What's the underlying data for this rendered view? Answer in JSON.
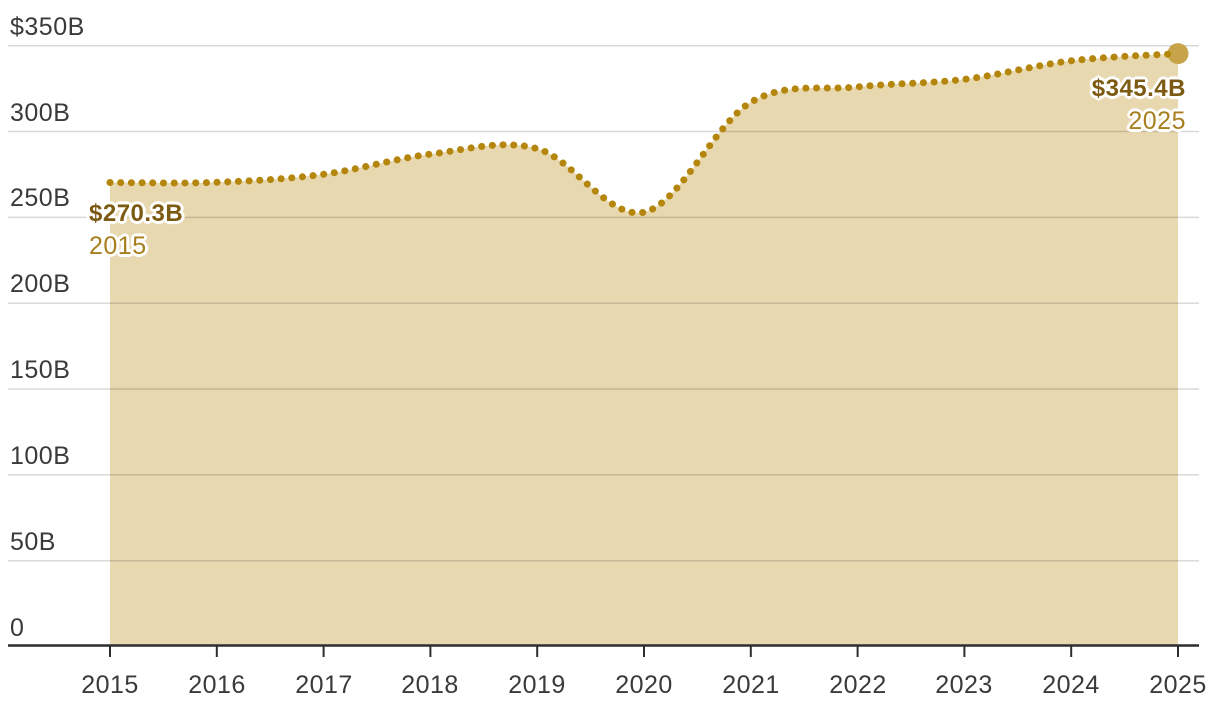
{
  "chart_data": {
    "type": "area",
    "title": "",
    "x": [
      2015,
      2016,
      2017,
      2018,
      2019,
      2020,
      2021,
      2022,
      2023,
      2024,
      2025
    ],
    "values": [
      270.3,
      270.4,
      275.1,
      286.8,
      290.0,
      253.0,
      317.0,
      326.0,
      330.4,
      341.2,
      345.4
    ],
    "ylim": [
      0,
      350
    ],
    "yticks": [
      {
        "value": 350,
        "label": "$350B"
      },
      {
        "value": 300,
        "label": "300B"
      },
      {
        "value": 250,
        "label": "250B"
      },
      {
        "value": 200,
        "label": "200B"
      },
      {
        "value": 150,
        "label": "150B"
      },
      {
        "value": 100,
        "label": "100B"
      },
      {
        "value": 50,
        "label": "50B"
      },
      {
        "value": 0,
        "label": "0"
      }
    ],
    "xtick_labels": [
      "2015",
      "2016",
      "2017",
      "2018",
      "2019",
      "2020",
      "2021",
      "2022",
      "2023",
      "2024",
      "2025"
    ],
    "grid": "horizontal",
    "legend": "none",
    "line_style": "dotted",
    "annotations": [
      {
        "position": "first-point",
        "value_label": "$270.3B",
        "year_label": "2015"
      },
      {
        "position": "last-point",
        "value_label": "$345.4B",
        "year_label": "2025"
      }
    ],
    "colors": {
      "dotted_line": "#b5860d",
      "area_fill": "#e8d8b0",
      "end_marker": "#c7a44a",
      "value_label_text": "#7d5a12",
      "year_label_text": "#a87f1f",
      "axis_text": "#3a3a3a",
      "axis_line": "#2d2d2d",
      "gridline": "rgba(0,0,0,0.15)"
    }
  }
}
